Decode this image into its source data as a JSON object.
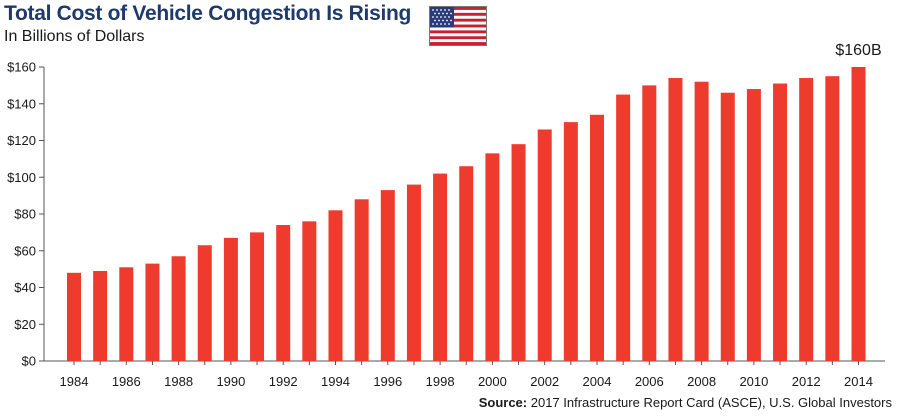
{
  "header": {
    "title": "Total Cost of Vehicle Congestion Is Rising",
    "subtitle": "In Billions of Dollars"
  },
  "flag_icon": "us-flag-icon",
  "source": {
    "label": "Source:",
    "text": "2017 Infrastructure Report Card (ASCE), U.S. Global Investors"
  },
  "chart_data": {
    "type": "bar",
    "title": "Total Cost of Vehicle Congestion Is Rising",
    "subtitle": "In Billions of Dollars",
    "xlabel": "",
    "ylabel": "",
    "categories": [
      "1984",
      "1985",
      "1986",
      "1987",
      "1988",
      "1989",
      "1990",
      "1991",
      "1992",
      "1993",
      "1994",
      "1995",
      "1996",
      "1997",
      "1998",
      "1999",
      "2000",
      "2001",
      "2002",
      "2003",
      "2004",
      "2005",
      "2006",
      "2007",
      "2008",
      "2009",
      "2010",
      "2011",
      "2012",
      "2013",
      "2014"
    ],
    "values": [
      48,
      49,
      51,
      53,
      57,
      63,
      67,
      70,
      74,
      76,
      82,
      88,
      93,
      96,
      102,
      106,
      113,
      118,
      126,
      130,
      134,
      145,
      150,
      154,
      152,
      146,
      148,
      151,
      154,
      155,
      160
    ],
    "x_tick_labels": [
      "1984",
      "1986",
      "1988",
      "1990",
      "1992",
      "1994",
      "1996",
      "1998",
      "2000",
      "2002",
      "2004",
      "2006",
      "2008",
      "2010",
      "2012",
      "2014"
    ],
    "y_tick_labels": [
      "$0",
      "$20",
      "$40",
      "$60",
      "$80",
      "$100",
      "$120",
      "$140",
      "$160"
    ],
    "y_ticks": [
      0,
      20,
      40,
      60,
      80,
      100,
      120,
      140,
      160
    ],
    "ylim": [
      0,
      160
    ],
    "annotation": {
      "category": "2014",
      "text": "$160B"
    },
    "bar_color": "#ef3a2e",
    "axis_color": "#555555",
    "grid": false
  }
}
